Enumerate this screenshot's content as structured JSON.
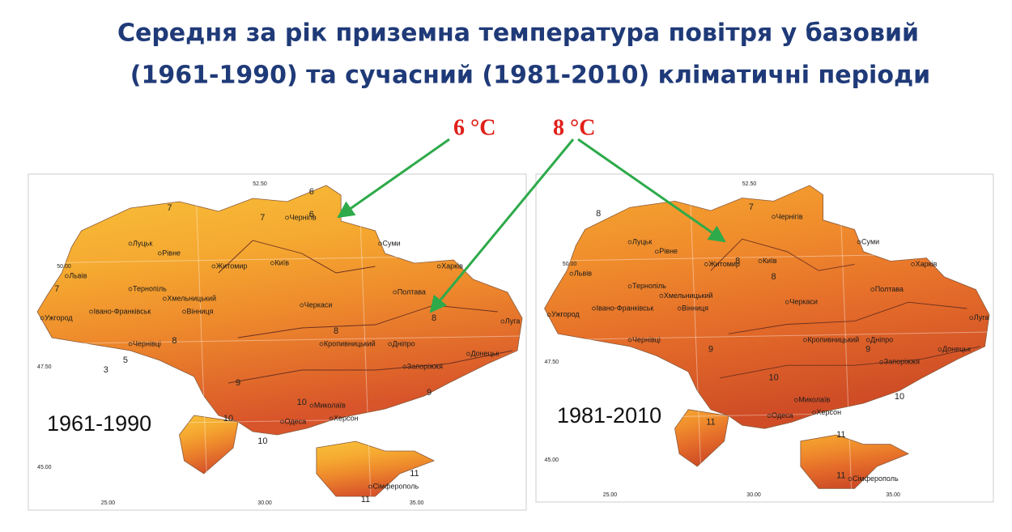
{
  "title": [
    "Середня за рік приземна температура повітря у базовий",
    "(1961-1990) та сучасний (1981-2010) кліматичні періоди"
  ],
  "annotations": [
    "6 °C",
    "8 °C"
  ],
  "maps": [
    {
      "period": "1961-1990",
      "lat_labels": [
        "52.50",
        "50.00",
        "47.50",
        "45.00"
      ],
      "lon_labels": [
        "25.00",
        "30.00",
        "35.00"
      ],
      "cities": [
        "Чернігів",
        "Суми",
        "Луцьк",
        "Рівне",
        "Житомир",
        "Київ",
        "Харків",
        "Львів",
        "Тернопіль",
        "Хмельницький",
        "Полтава",
        "Вінниця",
        "Черкаси",
        "Івано-Франківськ",
        "Ужгород",
        "Чернівці",
        "Кропивницький",
        "Дніпро",
        "Луга",
        "Донецьк",
        "Запоріжжя",
        "Миколаїв",
        "Херсон",
        "Одеса",
        "Сімферополь"
      ],
      "isotherms": [
        6,
        6,
        7,
        7,
        7,
        5,
        3,
        8,
        8,
        8,
        9,
        9,
        10,
        10,
        10,
        11,
        11
      ]
    },
    {
      "period": "1981-2010",
      "lat_labels": [
        "52.50",
        "50.00",
        "47.50",
        "45.00"
      ],
      "lon_labels": [
        "25.00",
        "30.00",
        "35.00"
      ],
      "cities": [
        "Чернігів",
        "Суми",
        "Луцьк",
        "Рівне",
        "Житомир",
        "Київ",
        "Харків",
        "Львів",
        "Тернопіль",
        "Хмельницький",
        "Полтава",
        "Вінниця",
        "Черкаси",
        "Івано-Франківськ",
        "Ужгород",
        "Чернівці",
        "Кропивницький",
        "Дніпро",
        "Луга",
        "Донецьк",
        "Запоріжжя",
        "Миколаїв",
        "Херсон",
        "Одеса",
        "Сімферополь"
      ],
      "isotherms": [
        7,
        8,
        8,
        8,
        9,
        9,
        10,
        10,
        11,
        11,
        11
      ]
    }
  ]
}
